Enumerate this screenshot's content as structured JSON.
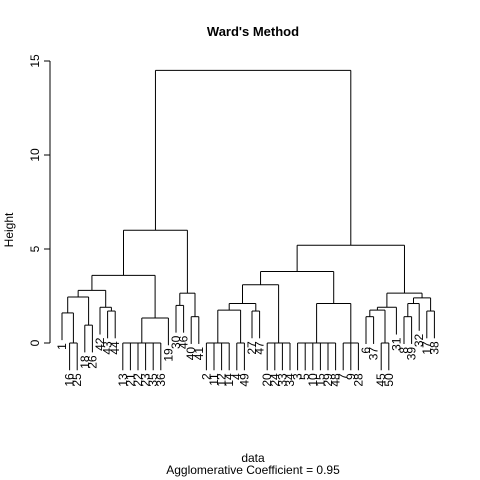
{
  "chart_data": {
    "type": "dendrogram",
    "title": "Ward's Method",
    "y_label": "Height",
    "x_label": "data",
    "subtitle": "Agglomerative Coefficient =  0.95",
    "ylim": [
      0,
      15
    ],
    "yticks": [
      0,
      5,
      10,
      15
    ],
    "color": "#000000",
    "tree": {
      "height": 14.5,
      "children": [
        {
          "height": 6.0,
          "children": [
            {
              "height": 3.6,
              "children": [
                {
                  "height": 2.8,
                  "children": [
                    {
                      "height": 2.45,
                      "children": [
                        {
                          "height": 1.6,
                          "children": [
                            {
                              "label": "1"
                            },
                            {
                              "height": 0,
                              "children": [
                                {
                                  "label": "16"
                                },
                                {
                                  "label": "25"
                                }
                              ]
                            }
                          ]
                        },
                        {
                          "height": 0.95,
                          "children": [
                            {
                              "label": "18"
                            },
                            {
                              "label": "26"
                            }
                          ]
                        }
                      ]
                    },
                    {
                      "height": 1.9,
                      "children": [
                        {
                          "label": "42"
                        },
                        {
                          "height": 1.7,
                          "children": [
                            {
                              "label": "43"
                            },
                            {
                              "label": "44"
                            }
                          ]
                        }
                      ]
                    }
                  ]
                },
                {
                  "height": 1.33,
                  "children": [
                    {
                      "height": 0,
                      "children": [
                        {
                          "label": "13"
                        },
                        {
                          "label": "21"
                        },
                        {
                          "label": "22"
                        },
                        {
                          "label": "23"
                        },
                        {
                          "label": "35"
                        },
                        {
                          "label": "36"
                        }
                      ]
                    },
                    {
                      "label": "19"
                    }
                  ]
                }
              ]
            },
            {
              "height": 2.65,
              "children": [
                {
                  "height": 2.0,
                  "children": [
                    {
                      "label": "30"
                    },
                    {
                      "label": "46"
                    }
                  ]
                },
                {
                  "height": 1.4,
                  "children": [
                    {
                      "label": "40"
                    },
                    {
                      "label": "41"
                    }
                  ]
                }
              ]
            }
          ]
        },
        {
          "height": 5.2,
          "children": [
            {
              "height": 3.8,
              "children": [
                {
                  "height": 3.1,
                  "children": [
                    {
                      "height": 2.1,
                      "children": [
                        {
                          "height": 1.75,
                          "children": [
                            {
                              "height": 0,
                              "children": [
                                {
                                  "label": "2"
                                },
                                {
                                  "label": "11"
                                },
                                {
                                  "label": "12"
                                },
                                {
                                  "label": "14"
                                }
                              ]
                            },
                            {
                              "height": 0,
                              "children": [
                                {
                                  "label": "4"
                                },
                                {
                                  "label": "49"
                                }
                              ]
                            }
                          ]
                        },
                        {
                          "height": 1.7,
                          "children": [
                            {
                              "label": "27"
                            },
                            {
                              "label": "47"
                            }
                          ]
                        }
                      ]
                    },
                    {
                      "height": 0,
                      "children": [
                        {
                          "label": "20"
                        },
                        {
                          "label": "24"
                        },
                        {
                          "label": "33"
                        },
                        {
                          "label": "34"
                        }
                      ]
                    }
                  ]
                },
                {
                  "height": 2.1,
                  "children": [
                    {
                      "height": 0,
                      "children": [
                        {
                          "label": "3"
                        },
                        {
                          "label": "5"
                        },
                        {
                          "label": "10"
                        },
                        {
                          "label": "15"
                        },
                        {
                          "label": "29"
                        },
                        {
                          "label": "48"
                        }
                      ]
                    },
                    {
                      "height": 0,
                      "children": [
                        {
                          "label": "7"
                        },
                        {
                          "label": "9"
                        },
                        {
                          "label": "28"
                        }
                      ]
                    }
                  ]
                }
              ]
            },
            {
              "height": 2.65,
              "children": [
                {
                  "height": 1.9,
                  "children": [
                    {
                      "height": 1.75,
                      "children": [
                        {
                          "height": 1.4,
                          "children": [
                            {
                              "label": "6"
                            },
                            {
                              "label": "37"
                            }
                          ]
                        },
                        {
                          "height": 0,
                          "children": [
                            {
                              "label": "45"
                            },
                            {
                              "label": "50"
                            }
                          ]
                        }
                      ]
                    },
                    {
                      "label": "31"
                    }
                  ]
                },
                {
                  "height": 2.4,
                  "children": [
                    {
                      "height": 2.1,
                      "children": [
                        {
                          "height": 1.4,
                          "children": [
                            {
                              "label": "8"
                            },
                            {
                              "label": "39"
                            }
                          ]
                        },
                        {
                          "label": "32"
                        }
                      ]
                    },
                    {
                      "height": 1.7,
                      "children": [
                        {
                          "label": "17"
                        },
                        {
                          "label": "38"
                        }
                      ]
                    }
                  ]
                }
              ]
            }
          ]
        }
      ]
    }
  }
}
